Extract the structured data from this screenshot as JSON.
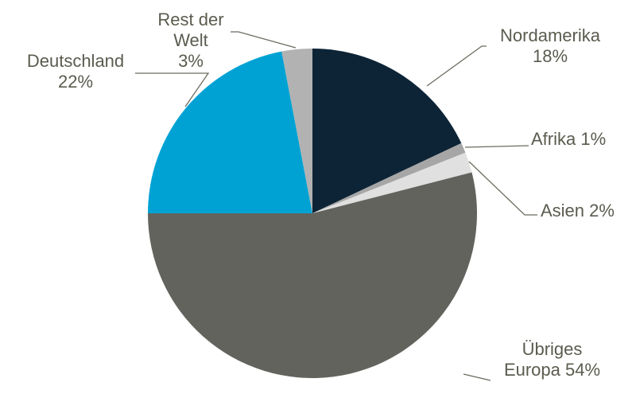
{
  "chart_data": {
    "type": "pie",
    "categories": [
      "Nordamerika",
      "Afrika",
      "Asien",
      "Übriges Europa",
      "Deutschland",
      "Rest der Welt"
    ],
    "values": [
      18,
      1,
      2,
      54,
      22,
      3
    ],
    "value_labels": [
      "18%",
      "1%",
      "2%",
      "54%",
      "22%",
      "3%"
    ],
    "colors": [
      "#0d2436",
      "#a6a6a6",
      "#e0e0e0",
      "#63635e",
      "#00a2d4",
      "#b2b2b2"
    ]
  }
}
